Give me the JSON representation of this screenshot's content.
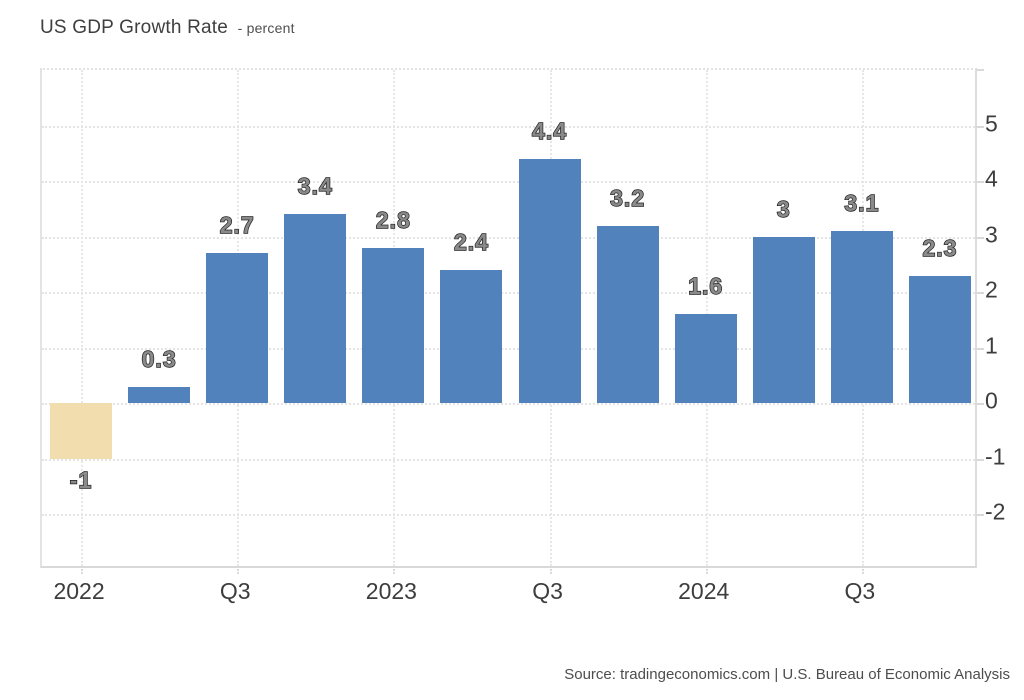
{
  "title": {
    "main": "US GDP Growth Rate",
    "sub": "- percent"
  },
  "source": "Source: tradingeconomics.com | U.S. Bureau of Economic Analysis",
  "colors": {
    "bar_positive": "#5182BC",
    "bar_negative": "#F2DDAE",
    "grid": "#e4e4e4",
    "axis_line": "#d9d9d9",
    "axis_text": "#3d3d3d",
    "label_fill": "#8a8a8a",
    "label_stroke": "#1f1f1f"
  },
  "chart_data": {
    "type": "bar",
    "title": "US GDP Growth Rate",
    "ylabel": "percent",
    "xlabel": "",
    "ylim": [
      -3,
      6
    ],
    "grid": "dotted",
    "legend": "none",
    "y_ticks": [
      5,
      4,
      3,
      2,
      1,
      0,
      -1,
      -2
    ],
    "x_ticks": [
      {
        "bar_index": 0,
        "label": "2022"
      },
      {
        "bar_index": 2,
        "label": "Q3"
      },
      {
        "bar_index": 4,
        "label": "2023"
      },
      {
        "bar_index": 6,
        "label": "Q3"
      },
      {
        "bar_index": 8,
        "label": "2024"
      },
      {
        "bar_index": 10,
        "label": "Q3"
      }
    ],
    "bars": [
      {
        "label": "-1",
        "value": -1.0
      },
      {
        "label": "0.3",
        "value": 0.3
      },
      {
        "label": "2.7",
        "value": 2.7
      },
      {
        "label": "3.4",
        "value": 3.4
      },
      {
        "label": "2.8",
        "value": 2.8
      },
      {
        "label": "2.4",
        "value": 2.4
      },
      {
        "label": "4.4",
        "value": 4.4
      },
      {
        "label": "3.2",
        "value": 3.2
      },
      {
        "label": "1.6",
        "value": 1.6
      },
      {
        "label": "3",
        "value": 3.0
      },
      {
        "label": "3.1",
        "value": 3.1
      },
      {
        "label": "2.3",
        "value": 2.3
      }
    ]
  }
}
